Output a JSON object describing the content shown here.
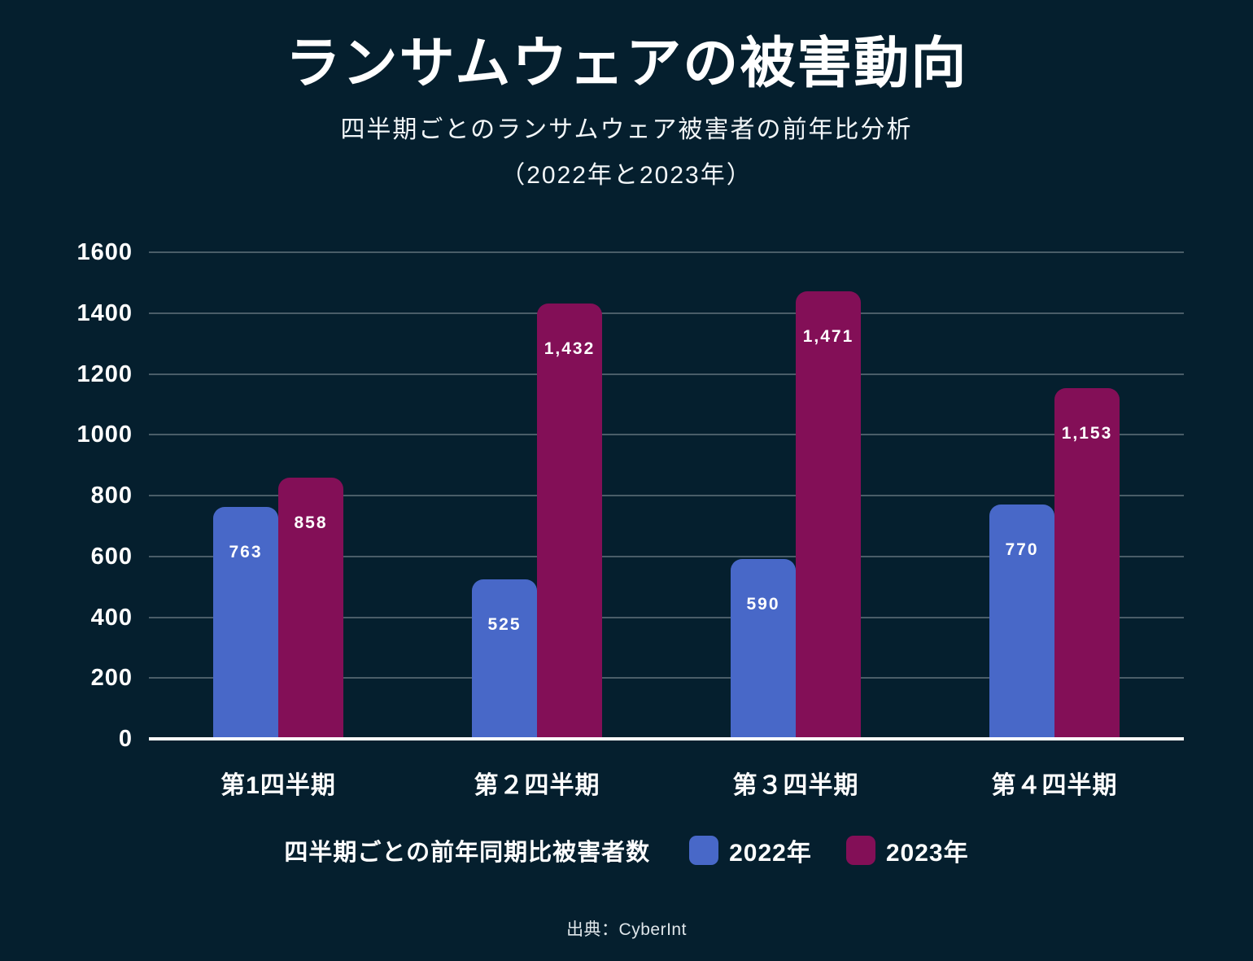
{
  "page": {
    "title": "ランサムウェアの被害動向",
    "subtitle_line1": "四半期ごとのランサムウェア被害者の前年比分析",
    "subtitle_line2": "（2022年と2023年）",
    "source": "出典：CyberInt"
  },
  "legend": {
    "label": "四半期ごとの前年同期比被害者数",
    "items": [
      {
        "name": "2022年",
        "color": "#4868c8"
      },
      {
        "name": "2023年",
        "color": "#830f57"
      }
    ]
  },
  "chart_data": {
    "type": "bar",
    "title": "ランサムウェアの被害動向",
    "subtitle": "四半期ごとのランサムウェア被害者の前年比分析（2022年と2023年）",
    "categories": [
      "第1四半期",
      "第２四半期",
      "第３四半期",
      "第４四半期"
    ],
    "series": [
      {
        "name": "2022年",
        "color": "#4868c8",
        "values": [
          763,
          525,
          590,
          770
        ]
      },
      {
        "name": "2023年",
        "color": "#830f57",
        "values": [
          858,
          1432,
          1471,
          1153
        ]
      }
    ],
    "value_labels": [
      [
        "763",
        "525",
        "590",
        "770"
      ],
      [
        "858",
        "1,432",
        "1,471",
        "1,153"
      ]
    ],
    "xlabel": "",
    "ylabel": "",
    "ylim": [
      0,
      1600
    ],
    "yticks": [
      0,
      200,
      400,
      600,
      800,
      1000,
      1200,
      1400,
      1600
    ],
    "grid": true,
    "legend_position": "bottom",
    "colors": {
      "background": "#051f2e",
      "gridline": "rgba(255,255,255,0.28)",
      "axis_line": "#ffffff",
      "text": "#ffffff"
    }
  }
}
